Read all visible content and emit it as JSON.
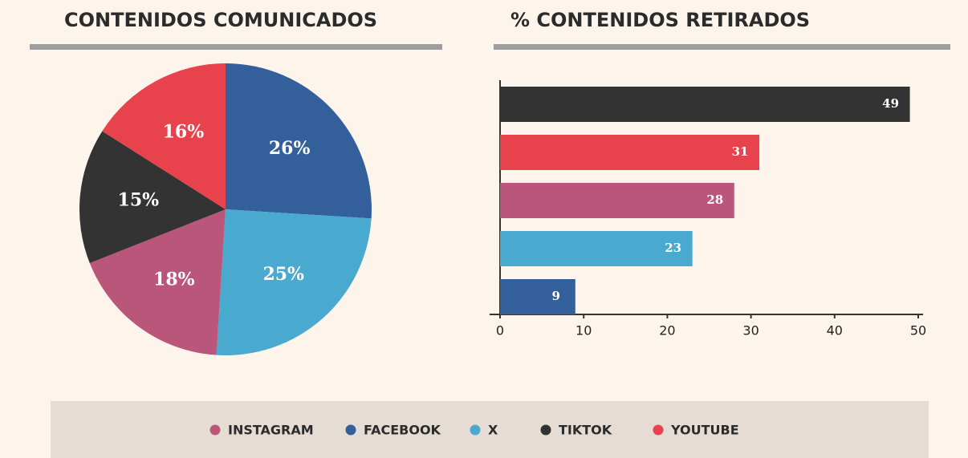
{
  "chart_data": [
    {
      "type": "pie",
      "title": "CONTENIDOS COMUNICADOS",
      "values": [
        26,
        25,
        18,
        15,
        16
      ],
      "value_labels": [
        "26%",
        "25%",
        "18%",
        "15%",
        "16%"
      ],
      "colors": [
        "#33609a",
        "#4aa9cf",
        "#b9567a",
        "#333333",
        "#e8434c"
      ]
    },
    {
      "type": "bar",
      "title": "% CONTENIDOS RETIRADOS",
      "values": [
        49,
        31,
        28,
        23,
        9
      ],
      "colors": [
        "#333333",
        "#e8434c",
        "#b9567a",
        "#4aa9cf",
        "#33609a"
      ],
      "xlim": [
        0,
        50
      ],
      "xticks": [
        0,
        10,
        20,
        30,
        40,
        50
      ]
    }
  ],
  "legend": {
    "items": [
      {
        "name": "INSTAGRAM",
        "color": "#b9567a"
      },
      {
        "name": "FACEBOOK",
        "color": "#33609a"
      },
      {
        "name": "X",
        "color": "#4aa9cf"
      },
      {
        "name": "TIKTOK",
        "color": "#333333"
      },
      {
        "name": "YOUTUBE",
        "color": "#e8434c"
      }
    ]
  }
}
